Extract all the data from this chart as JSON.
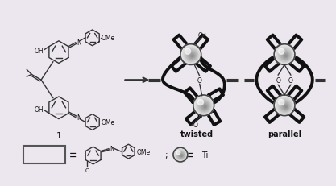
{
  "background_color": "#ece7ee",
  "arrow_color": "#333333",
  "text_color": "#111111",
  "bond_color": "#333333",
  "metal_edge": "#444444",
  "rect_edge": "#555555",
  "labels": {
    "compound_num": "1",
    "twisted": "twisted",
    "parallel": "parallel",
    "OMe1": "OMe",
    "OMe2": "OMe",
    "OMe3": "OMe",
    "OH1": "OH",
    "OH2": "OH",
    "equiv": "≡",
    "Ti": "Ti",
    "semicolon": ";"
  },
  "figsize": [
    4.17,
    2.32
  ],
  "dpi": 100
}
